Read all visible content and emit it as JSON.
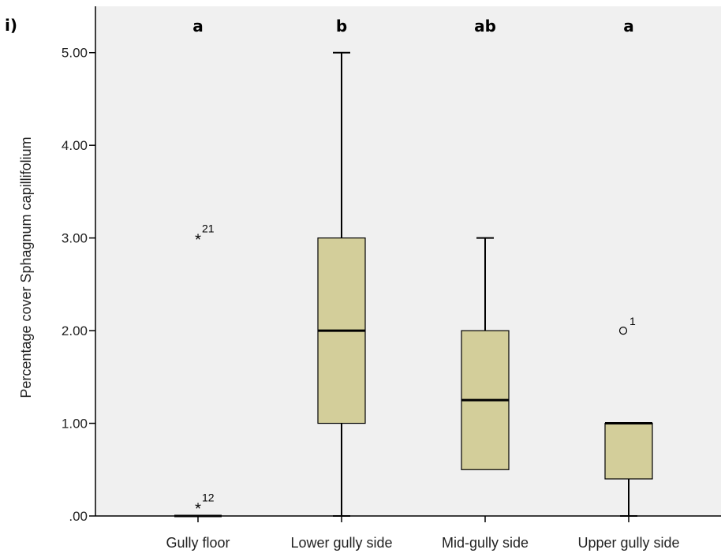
{
  "panel_label": "i)",
  "chart_data": {
    "type": "boxplot",
    "title": "",
    "xlabel": "",
    "ylabel": "Percentage cover Sphagnum capillifolium",
    "ylim": [
      0,
      5.5
    ],
    "yticks": [
      ".00",
      "1.00",
      "2.00",
      "3.00",
      "4.00",
      "5.00"
    ],
    "ytick_values": [
      0,
      1,
      2,
      3,
      4,
      5
    ],
    "plot_background": "#f0f0f0",
    "box_color": "#d3ce9a",
    "categories": [
      "Gully floor",
      "Lower gully side",
      "Mid-gully side",
      "Upper gully side"
    ],
    "group_letters": [
      "a",
      "b",
      "ab",
      "a"
    ],
    "boxes": [
      {
        "min": 0,
        "q1": 0,
        "median": 0,
        "q3": 0,
        "max": 0
      },
      {
        "min": 0,
        "q1": 1.0,
        "median": 2.0,
        "q3": 3.0,
        "max": 5.0
      },
      {
        "min": 0.5,
        "q1": 0.5,
        "median": 1.25,
        "q3": 2.0,
        "max": 3.0
      },
      {
        "min": 0,
        "q1": 0.4,
        "median": 1.0,
        "q3": 1.0,
        "max": 1.0
      }
    ],
    "outliers": [
      {
        "category": "Gully floor",
        "value": 3.0,
        "label": "21",
        "marker": "star"
      },
      {
        "category": "Gully floor",
        "value": 0.1,
        "label": "12",
        "marker": "star"
      },
      {
        "category": "Upper gully side",
        "value": 2.0,
        "label": "1",
        "marker": "circle"
      }
    ]
  }
}
